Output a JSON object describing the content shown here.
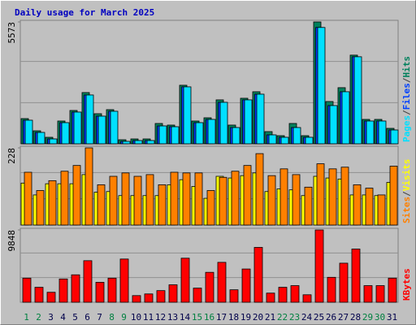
{
  "title": "Daily usage for March 2025",
  "chart_data": [
    {
      "type": "bar",
      "ylim": [
        0,
        5573
      ],
      "yticks": [
        5573
      ],
      "legend_separator": "/",
      "series": [
        {
          "name": "Hits",
          "color": "#00805c",
          "values": [
            1153,
            595,
            298,
            1042,
            1525,
            2344,
            1376,
            1562,
            186,
            223,
            223,
            930,
            856,
            2678,
            1042,
            1190,
            2009,
            856,
            2083,
            2381,
            558,
            372,
            930,
            372,
            5573,
            1934,
            2567,
            4055,
            1116,
            1116,
            707
          ]
        },
        {
          "name": "Files",
          "color": "#0040ff",
          "values": [
            1079,
            521,
            223,
            967,
            1451,
            2232,
            1265,
            1488,
            112,
            149,
            149,
            818,
            781,
            2604,
            967,
            1116,
            1897,
            744,
            2009,
            2269,
            409,
            298,
            744,
            298,
            5320,
            1748,
            2381,
            3980,
            1042,
            1042,
            632
          ]
        },
        {
          "name": "Pages",
          "color": "#00e0ff",
          "values": [
            1079,
            521,
            223,
            967,
            1451,
            2232,
            1265,
            1488,
            112,
            149,
            149,
            818,
            781,
            2604,
            967,
            1116,
            1897,
            744,
            2009,
            2269,
            409,
            298,
            744,
            298,
            5320,
            1748,
            2381,
            3980,
            1042,
            1042,
            632
          ]
        }
      ]
    },
    {
      "type": "bar",
      "ylim": [
        0,
        228
      ],
      "yticks": [
        228
      ],
      "legend_separator": "/",
      "series": [
        {
          "name": "Visits",
          "color": "#ffff00",
          "values": [
            124,
            89,
            122,
            122,
            122,
            149,
            97,
            99,
            87,
            87,
            87,
            87,
            119,
            134,
            114,
            79,
            144,
            139,
            146,
            154,
            99,
            107,
            104,
            87,
            144,
            139,
            136,
            89,
            89,
            87,
            126
          ]
        },
        {
          "name": "Sites",
          "color": "#ff8000",
          "values": [
            156,
            102,
            131,
            159,
            176,
            228,
            119,
            144,
            154,
            144,
            149,
            119,
            156,
            154,
            154,
            102,
            141,
            159,
            176,
            211,
            146,
            166,
            149,
            112,
            181,
            166,
            171,
            119,
            109,
            89,
            174
          ]
        }
      ]
    },
    {
      "type": "bar",
      "ylim": [
        0,
        9848
      ],
      "yticks": [
        9848
      ],
      "categories": [
        "1",
        "2",
        "3",
        "4",
        "5",
        "6",
        "7",
        "8",
        "9",
        "10",
        "11",
        "12",
        "13",
        "14",
        "15",
        "16",
        "17",
        "18",
        "19",
        "20",
        "21",
        "22",
        "23",
        "24",
        "25",
        "26",
        "27",
        "28",
        "29",
        "30",
        "31"
      ],
      "category_colors": [
        "#008040",
        "#008040",
        "#00004a",
        "#00004a",
        "#00004a",
        "#00004a",
        "#00004a",
        "#008040",
        "#008040",
        "#00004a",
        "#00004a",
        "#00004a",
        "#00004a",
        "#00004a",
        "#008040",
        "#008040",
        "#00004a",
        "#00004a",
        "#00004a",
        "#00004a",
        "#00004a",
        "#008040",
        "#008040",
        "#00004a",
        "#00004a",
        "#00004a",
        "#00004a",
        "#00004a",
        "#008040",
        "#008040",
        "#00004a"
      ],
      "series": [
        {
          "name": "KBytes",
          "color": "#ff0000",
          "values": [
            3283,
            2038,
            1358,
            3170,
            3736,
            5660,
            2717,
            3283,
            5886,
            906,
            1132,
            1585,
            2377,
            6000,
            1924,
            4075,
            5434,
            1698,
            4528,
            7471,
            1245,
            2038,
            2264,
            1019,
            9848,
            3396,
            5320,
            7245,
            2264,
            2264,
            3283
          ]
        }
      ]
    }
  ]
}
